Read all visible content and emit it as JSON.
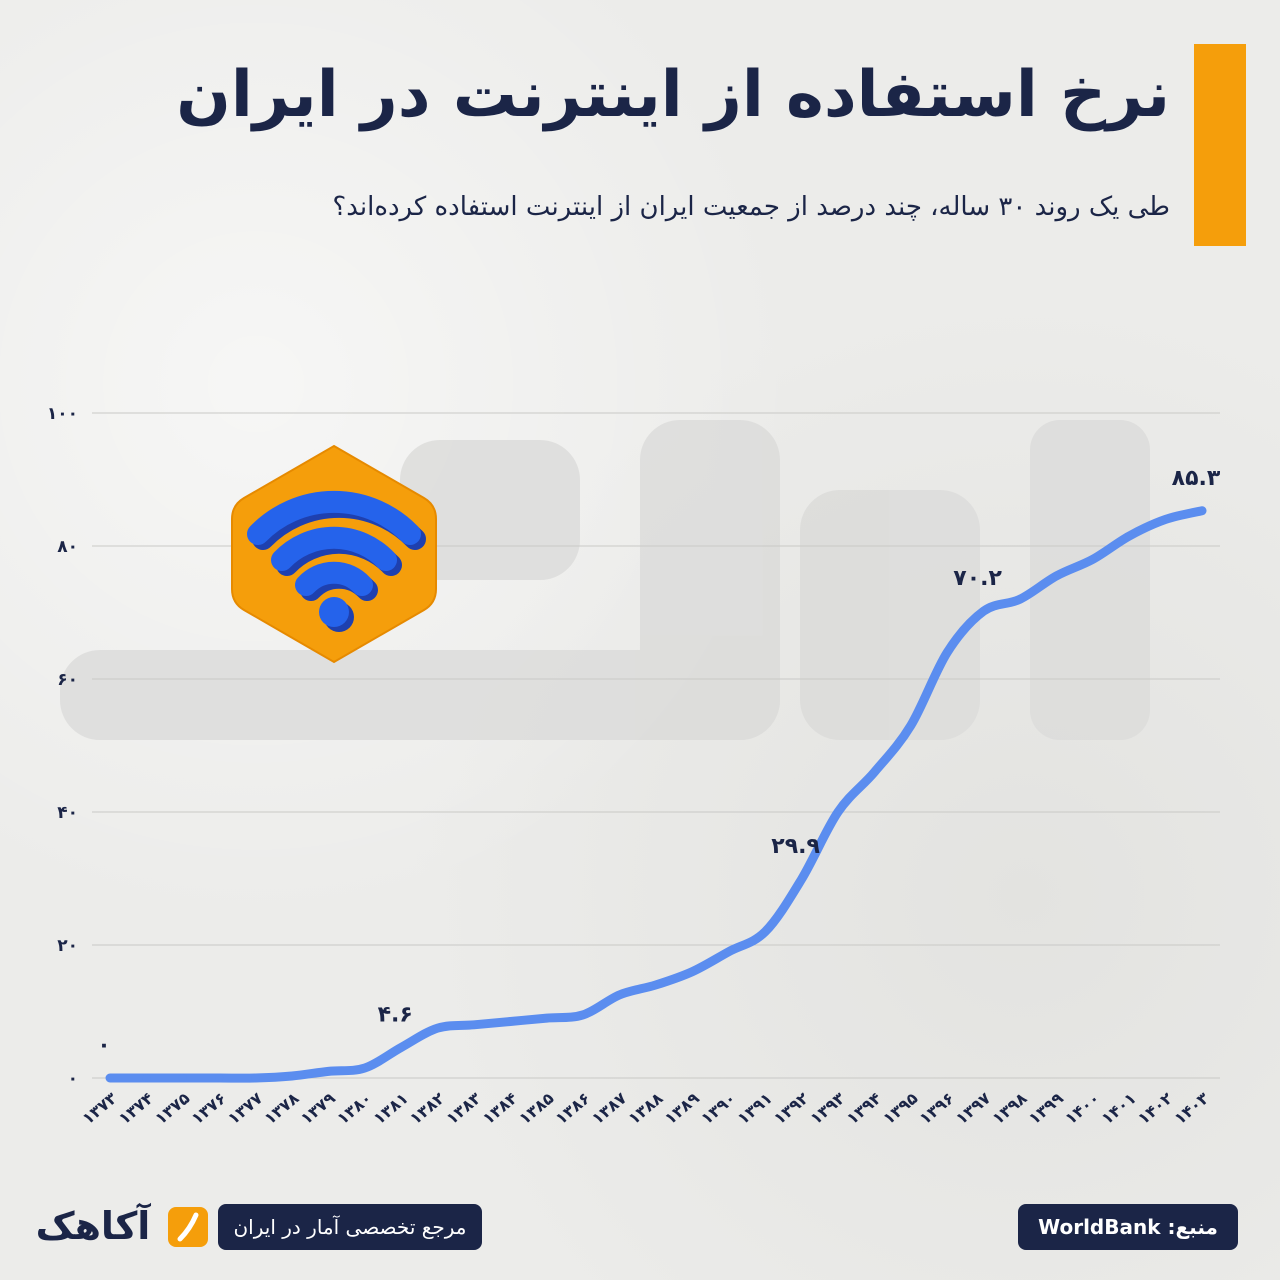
{
  "header": {
    "title": "نرخ استفاده از اینترنت در ایران",
    "subtitle": "طی یک روند ۳۰ ساله، چند درصد از جمعیت ایران از اینترنت استفاده کرده‌اند؟"
  },
  "colors": {
    "accent": "#f59e0b",
    "navy": "#1b2547",
    "line": "#5b8def",
    "icon_blue": "#2563eb"
  },
  "icons": {
    "wifi": "wifi-icon",
    "brand_mark": "slash-mark-icon"
  },
  "footer": {
    "logo_text": "آکاهک",
    "tagline": "مرجع تخصصی آمار در ایران",
    "source": "منبع: WorldBank"
  },
  "chart_data": {
    "type": "line",
    "title": "نرخ استفاده از اینترنت در ایران",
    "xlabel": "",
    "ylabel": "",
    "ylim": [
      0,
      100
    ],
    "yticks": [
      "۰",
      "۲۰",
      "۴۰",
      "۶۰",
      "۸۰",
      "۱۰۰"
    ],
    "ytick_values": [
      0,
      20,
      40,
      60,
      80,
      100
    ],
    "grid": true,
    "categories": [
      "۱۳۷۳",
      "۱۳۷۴",
      "۱۳۷۵",
      "۱۳۷۶",
      "۱۳۷۷",
      "۱۳۷۸",
      "۱۳۷۹",
      "۱۳۸۰",
      "۱۳۸۱",
      "۱۳۸۲",
      "۱۳۸۳",
      "۱۳۸۴",
      "۱۳۸۵",
      "۱۳۸۶",
      "۱۳۸۷",
      "۱۳۸۸",
      "۱۳۸۹",
      "۱۳۹۰",
      "۱۳۹۱",
      "۱۳۹۲",
      "۱۳۹۳",
      "۱۳۹۴",
      "۱۳۹۵",
      "۱۳۹۶",
      "۱۳۹۷",
      "۱۳۹۸",
      "۱۳۹۹",
      "۱۴۰۰",
      "۱۴۰۱",
      "۱۴۰۲",
      "۱۴۰۳"
    ],
    "values": [
      0,
      0,
      0,
      0,
      0,
      0.3,
      1,
      1.5,
      4.6,
      7.5,
      8,
      8.5,
      9,
      9.5,
      12.5,
      14,
      16,
      19,
      22,
      29.9,
      40,
      46,
      53,
      64,
      70.2,
      72,
      75.5,
      78,
      81.5,
      84,
      85.3
    ],
    "data_labels": [
      {
        "index": 0,
        "text": "۰"
      },
      {
        "index": 8,
        "text": "۴.۶"
      },
      {
        "index": 19,
        "text": "۲۹.۹"
      },
      {
        "index": 24,
        "text": "۷۰.۲"
      },
      {
        "index": 30,
        "text": "۸۵.۳"
      }
    ]
  }
}
